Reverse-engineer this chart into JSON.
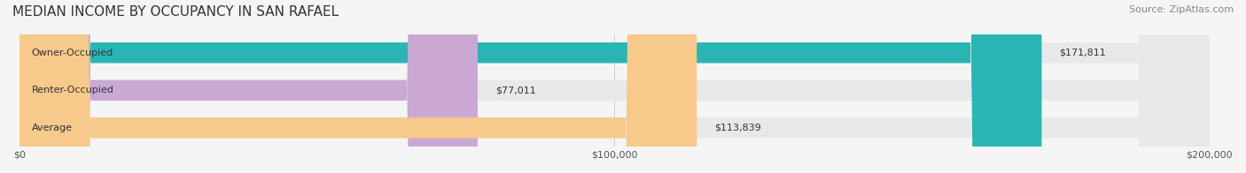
{
  "title": "MEDIAN INCOME BY OCCUPANCY IN SAN RAFAEL",
  "source": "Source: ZipAtlas.com",
  "categories": [
    "Owner-Occupied",
    "Renter-Occupied",
    "Average"
  ],
  "values": [
    171811,
    77011,
    113839
  ],
  "labels": [
    "$171,811",
    "$77,011",
    "$113,839"
  ],
  "bar_colors": [
    "#2ab5b5",
    "#c9a8d4",
    "#f7c98a"
  ],
  "bar_edge_colors": [
    "#2ab5b5",
    "#c9a8d4",
    "#f7c98a"
  ],
  "background_color": "#f5f5f5",
  "bar_bg_color": "#e8e8e8",
  "xlim": [
    0,
    200000
  ],
  "xticks": [
    0,
    100000,
    200000
  ],
  "xtick_labels": [
    "$0",
    "$100,000",
    "$200,000"
  ],
  "title_fontsize": 11,
  "source_fontsize": 8,
  "label_fontsize": 8,
  "category_fontsize": 8
}
